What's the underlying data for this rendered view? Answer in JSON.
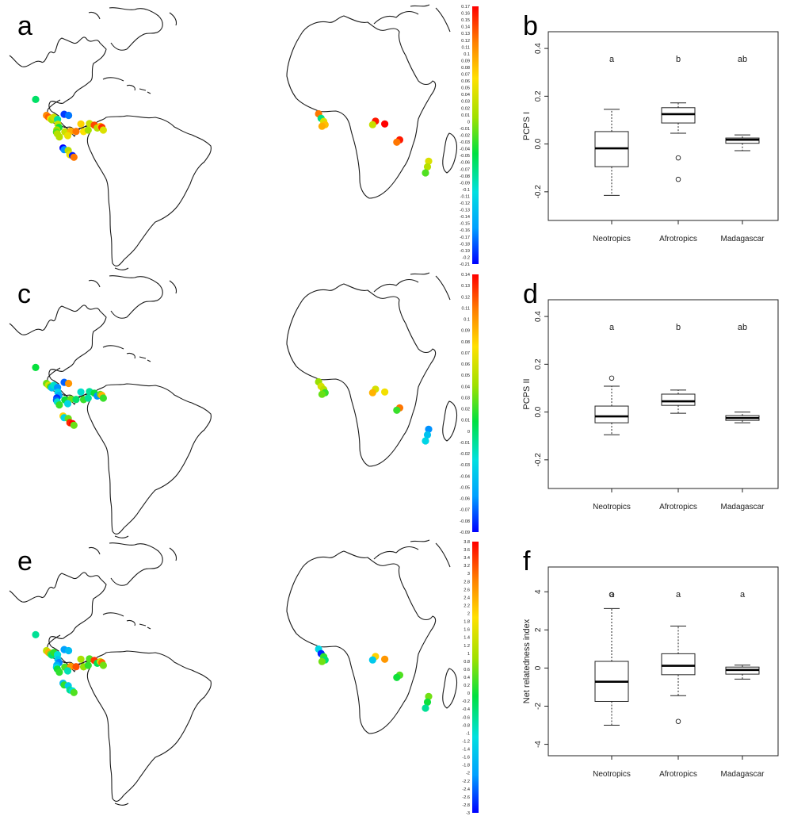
{
  "chart_data": [
    {
      "panel": "a",
      "type": "scatter",
      "colorbar": {
        "min": -0.21,
        "max": 0.17,
        "step": 0.01,
        "colors": [
          "#0000ff",
          "#00a0ff",
          "#00e0e0",
          "#00e040",
          "#a0e000",
          "#ffe000",
          "#ff8000",
          "#ff0000"
        ]
      },
      "sites": [
        {
          "lon": -89.8,
          "lat": 18.6,
          "value": -0.06
        },
        {
          "lon": -83.7,
          "lat": 10.2,
          "value": 0.11
        },
        {
          "lon": -82.6,
          "lat": 9.3,
          "value": 0.13
        },
        {
          "lon": -81.4,
          "lat": 8.4,
          "value": 0.06
        },
        {
          "lon": -80.7,
          "lat": 7.9,
          "value": 0.01
        },
        {
          "lon": -79.6,
          "lat": 9.2,
          "value": 0.03
        },
        {
          "lon": -77.5,
          "lat": 8.1,
          "value": -0.08
        },
        {
          "lon": -73.8,
          "lat": 10.8,
          "value": -0.19
        },
        {
          "lon": -71.3,
          "lat": 10.2,
          "value": -0.17
        },
        {
          "lon": -77.3,
          "lat": 5.6,
          "value": 0.03
        },
        {
          "lon": -76.7,
          "lat": 3.9,
          "value": -0.04
        },
        {
          "lon": -77.9,
          "lat": 2.6,
          "value": 0.01
        },
        {
          "lon": -78.1,
          "lat": 1.4,
          "value": -0.02
        },
        {
          "lon": -77.6,
          "lat": 0.5,
          "value": 0.02
        },
        {
          "lon": -73.4,
          "lat": 1.6,
          "value": 0.03
        },
        {
          "lon": -70.1,
          "lat": 1.9,
          "value": 0.09
        },
        {
          "lon": -67.1,
          "lat": 1.8,
          "value": 0.12
        },
        {
          "lon": -62.9,
          "lat": 1.7,
          "value": 0.06
        },
        {
          "lon": -60.3,
          "lat": 2.5,
          "value": 0.01
        },
        {
          "lon": -76.5,
          "lat": -1.1,
          "value": 0.02
        },
        {
          "lon": -71.8,
          "lat": -0.4,
          "value": 0.05
        },
        {
          "lon": -64.4,
          "lat": 5.7,
          "value": 0.07
        },
        {
          "lon": -59.6,
          "lat": 5.9,
          "value": 0.03
        },
        {
          "lon": -56.9,
          "lat": 5.1,
          "value": 0.14
        },
        {
          "lon": -55.2,
          "lat": 3.6,
          "value": 0.02
        },
        {
          "lon": -53.5,
          "lat": 4.4,
          "value": 0.08
        },
        {
          "lon": -52.6,
          "lat": 3.9,
          "value": 0.15
        },
        {
          "lon": -51.8,
          "lat": 2.5,
          "value": 0.04
        },
        {
          "lon": -74.4,
          "lat": -6.9,
          "value": -0.21
        },
        {
          "lon": -73.8,
          "lat": -7.8,
          "value": -0.16
        },
        {
          "lon": -71.5,
          "lat": -8.2,
          "value": 0.02
        },
        {
          "lon": -70.6,
          "lat": -10.4,
          "value": 0.05
        },
        {
          "lon": -69.1,
          "lat": -10.9,
          "value": -0.2
        },
        {
          "lon": -68.3,
          "lat": -11.8,
          "value": 0.12
        },
        {
          "lon": 9.9,
          "lat": 3.6,
          "value": 0.12
        },
        {
          "lon": 10.8,
          "lat": 1.8,
          "value": -0.07
        },
        {
          "lon": 11.7,
          "lat": 0.6,
          "value": 0.04
        },
        {
          "lon": 12.2,
          "lat": -0.7,
          "value": 0.08
        },
        {
          "lon": 11.1,
          "lat": -1.3,
          "value": 0.09
        },
        {
          "lon": 30.1,
          "lat": 0.7,
          "value": 0.16
        },
        {
          "lon": 29.1,
          "lat": -0.7,
          "value": 0.03
        },
        {
          "lon": 33.4,
          "lat": -0.4,
          "value": 0.17
        },
        {
          "lon": 38.7,
          "lat": -6.7,
          "value": 0.16
        },
        {
          "lon": 37.7,
          "lat": -7.6,
          "value": 0.12
        },
        {
          "lon": 49.0,
          "lat": -15.1,
          "value": 0.04
        },
        {
          "lon": 48.6,
          "lat": -17.3,
          "value": 0.02
        },
        {
          "lon": 47.9,
          "lat": -19.7,
          "value": -0.02
        }
      ]
    },
    {
      "panel": "b",
      "type": "boxplot",
      "ylabel": "PCPS I",
      "ylim": [
        -0.32,
        0.47
      ],
      "yticks": [
        -0.2,
        0.0,
        0.2,
        0.4
      ],
      "ytick_labels": [
        "-0.2",
        "0.0",
        "0.2",
        "0.4"
      ],
      "categories": [
        "Neotropics",
        "Afrotropics",
        "Madagascar"
      ],
      "group_letters": [
        "a",
        "b",
        "ab"
      ],
      "boxes": [
        {
          "whisker_low": -0.215,
          "q1": -0.095,
          "median": -0.018,
          "q3": 0.052,
          "whisker_high": 0.145,
          "outliers": []
        },
        {
          "whisker_low": 0.045,
          "q1": 0.088,
          "median": 0.125,
          "q3": 0.152,
          "whisker_high": 0.172,
          "outliers": [
            -0.058,
            -0.148
          ]
        },
        {
          "whisker_low": -0.028,
          "q1": 0.003,
          "median": 0.018,
          "q3": 0.025,
          "whisker_high": 0.038,
          "outliers": []
        }
      ]
    },
    {
      "panel": "c",
      "type": "scatter",
      "colorbar": {
        "min": -0.09,
        "max": 0.14,
        "step": 0.01,
        "colors": [
          "#0000ff",
          "#00a0ff",
          "#00e0e0",
          "#00e040",
          "#a0e000",
          "#ffe000",
          "#ff8000",
          "#ff0000"
        ]
      },
      "sites": [
        {
          "lon": -89.8,
          "lat": 18.6,
          "value": 0.01
        },
        {
          "lon": -83.7,
          "lat": 10.2,
          "value": 0.03
        },
        {
          "lon": -82.6,
          "lat": 9.3,
          "value": 0.06
        },
        {
          "lon": -81.4,
          "lat": 8.4,
          "value": 0.02
        },
        {
          "lon": -80.7,
          "lat": 7.9,
          "value": -0.04
        },
        {
          "lon": -79.6,
          "lat": 9.2,
          "value": -0.02
        },
        {
          "lon": -77.5,
          "lat": 8.1,
          "value": -0.06
        },
        {
          "lon": -73.8,
          "lat": 10.8,
          "value": -0.07
        },
        {
          "lon": -71.3,
          "lat": 10.2,
          "value": 0.1
        },
        {
          "lon": -77.3,
          "lat": 5.6,
          "value": -0.03
        },
        {
          "lon": -76.7,
          "lat": 3.9,
          "value": -0.05
        },
        {
          "lon": -77.9,
          "lat": 2.6,
          "value": -0.08
        },
        {
          "lon": -78.1,
          "lat": 1.4,
          "value": -0.07
        },
        {
          "lon": -77.6,
          "lat": 0.5,
          "value": -0.02
        },
        {
          "lon": -73.4,
          "lat": 1.6,
          "value": 0.01
        },
        {
          "lon": -70.1,
          "lat": 1.9,
          "value": 0.03
        },
        {
          "lon": -67.1,
          "lat": 1.8,
          "value": 0.0
        },
        {
          "lon": -62.9,
          "lat": 1.7,
          "value": 0.02
        },
        {
          "lon": -60.3,
          "lat": 2.5,
          "value": -0.01
        },
        {
          "lon": -76.5,
          "lat": -1.1,
          "value": 0.02
        },
        {
          "lon": -71.8,
          "lat": -0.4,
          "value": -0.03
        },
        {
          "lon": -64.4,
          "lat": 5.7,
          "value": -0.02
        },
        {
          "lon": -59.6,
          "lat": 5.9,
          "value": -0.01
        },
        {
          "lon": -56.9,
          "lat": 5.1,
          "value": 0.01
        },
        {
          "lon": -55.2,
          "lat": 3.6,
          "value": -0.06
        },
        {
          "lon": -53.5,
          "lat": 4.4,
          "value": 0.03
        },
        {
          "lon": -52.6,
          "lat": 3.9,
          "value": 0.09
        },
        {
          "lon": -51.8,
          "lat": 2.5,
          "value": 0.02
        },
        {
          "lon": -74.4,
          "lat": -6.9,
          "value": 0.08
        },
        {
          "lon": -73.8,
          "lat": -7.8,
          "value": -0.03
        },
        {
          "lon": -71.5,
          "lat": -8.2,
          "value": 0.03
        },
        {
          "lon": -70.6,
          "lat": -10.4,
          "value": 0.13
        },
        {
          "lon": -69.1,
          "lat": -10.9,
          "value": 0.14
        },
        {
          "lon": -68.3,
          "lat": -11.8,
          "value": 0.03
        },
        {
          "lon": 9.9,
          "lat": 3.6,
          "value": 0.04
        },
        {
          "lon": 10.8,
          "lat": 1.8,
          "value": 0.06
        },
        {
          "lon": 11.7,
          "lat": 0.6,
          "value": 0.05
        },
        {
          "lon": 12.2,
          "lat": -0.7,
          "value": 0.02
        },
        {
          "lon": 11.1,
          "lat": -1.3,
          "value": 0.03
        },
        {
          "lon": 30.1,
          "lat": 0.7,
          "value": 0.06
        },
        {
          "lon": 29.1,
          "lat": -0.7,
          "value": 0.09
        },
        {
          "lon": 33.4,
          "lat": -0.4,
          "value": 0.07
        },
        {
          "lon": 38.7,
          "lat": -6.7,
          "value": 0.11
        },
        {
          "lon": 37.7,
          "lat": -7.6,
          "value": 0.02
        },
        {
          "lon": 49.0,
          "lat": -15.1,
          "value": -0.06
        },
        {
          "lon": 48.6,
          "lat": -17.3,
          "value": -0.04
        },
        {
          "lon": 47.9,
          "lat": -19.7,
          "value": -0.03
        }
      ]
    },
    {
      "panel": "d",
      "type": "boxplot",
      "ylabel": "PCPS II",
      "ylim": [
        -0.32,
        0.47
      ],
      "yticks": [
        -0.2,
        0.0,
        0.2,
        0.4
      ],
      "ytick_labels": [
        "-0.2",
        "0.0",
        "0.2",
        "0.4"
      ],
      "categories": [
        "Neotropics",
        "Afrotropics",
        "Madagascar"
      ],
      "group_letters": [
        "a",
        "b",
        "ab"
      ],
      "boxes": [
        {
          "whisker_low": -0.095,
          "q1": -0.045,
          "median": -0.018,
          "q3": 0.025,
          "whisker_high": 0.108,
          "outliers": [
            0.142
          ]
        },
        {
          "whisker_low": -0.005,
          "q1": 0.028,
          "median": 0.045,
          "q3": 0.075,
          "whisker_high": 0.092,
          "outliers": []
        },
        {
          "whisker_low": -0.045,
          "q1": -0.035,
          "median": -0.025,
          "q3": -0.015,
          "whisker_high": 0.0,
          "outliers": []
        }
      ]
    },
    {
      "panel": "e",
      "type": "scatter",
      "colorbar": {
        "min": -3.0,
        "max": 3.8,
        "step": 0.2,
        "colors": [
          "#0000ff",
          "#00a0ff",
          "#00e0e0",
          "#00e040",
          "#a0e000",
          "#ffe000",
          "#ff8000",
          "#ff0000"
        ]
      },
      "sites": [
        {
          "lon": -89.8,
          "lat": 18.6,
          "value": -0.6
        },
        {
          "lon": -83.7,
          "lat": 10.2,
          "value": 1.2
        },
        {
          "lon": -82.6,
          "lat": 9.3,
          "value": 2.4
        },
        {
          "lon": -81.4,
          "lat": 8.4,
          "value": 0.6
        },
        {
          "lon": -80.7,
          "lat": 7.9,
          "value": -0.4
        },
        {
          "lon": -79.6,
          "lat": 9.2,
          "value": 0.2
        },
        {
          "lon": -77.5,
          "lat": 8.1,
          "value": -1.0
        },
        {
          "lon": -73.8,
          "lat": 10.8,
          "value": -2.0
        },
        {
          "lon": -71.3,
          "lat": 10.2,
          "value": -1.6
        },
        {
          "lon": -77.3,
          "lat": 5.6,
          "value": -1.4
        },
        {
          "lon": -76.7,
          "lat": 3.9,
          "value": -2.2
        },
        {
          "lon": -77.9,
          "lat": 2.6,
          "value": -1.8
        },
        {
          "lon": -78.1,
          "lat": 1.4,
          "value": -1.2
        },
        {
          "lon": -77.6,
          "lat": 0.5,
          "value": 0.0
        },
        {
          "lon": -73.4,
          "lat": 1.6,
          "value": 0.4
        },
        {
          "lon": -70.1,
          "lat": 1.9,
          "value": 2.6
        },
        {
          "lon": -67.1,
          "lat": 1.8,
          "value": 3.2
        },
        {
          "lon": -62.9,
          "lat": 1.7,
          "value": 0.8
        },
        {
          "lon": -60.3,
          "lat": 2.5,
          "value": 0.2
        },
        {
          "lon": -76.5,
          "lat": -1.1,
          "value": 0.2
        },
        {
          "lon": -71.8,
          "lat": -0.4,
          "value": -0.8
        },
        {
          "lon": -64.4,
          "lat": 5.7,
          "value": 1.0
        },
        {
          "lon": -59.6,
          "lat": 5.9,
          "value": 0.4
        },
        {
          "lon": -56.9,
          "lat": 5.1,
          "value": 3.4
        },
        {
          "lon": -55.2,
          "lat": 3.6,
          "value": -0.2
        },
        {
          "lon": -53.5,
          "lat": 4.4,
          "value": 1.4
        },
        {
          "lon": -52.6,
          "lat": 3.9,
          "value": 3.0
        },
        {
          "lon": -51.8,
          "lat": 2.5,
          "value": 0.6
        },
        {
          "lon": -74.4,
          "lat": -6.9,
          "value": -1.6
        },
        {
          "lon": -73.8,
          "lat": -7.8,
          "value": 0.2
        },
        {
          "lon": -71.5,
          "lat": -8.2,
          "value": -1.4
        },
        {
          "lon": -70.6,
          "lat": -10.4,
          "value": -0.6
        },
        {
          "lon": -69.1,
          "lat": -10.9,
          "value": -1.0
        },
        {
          "lon": -68.3,
          "lat": -11.8,
          "value": 0.4
        },
        {
          "lon": 9.9,
          "lat": 3.6,
          "value": -1.2
        },
        {
          "lon": 10.8,
          "lat": 1.8,
          "value": -2.8
        },
        {
          "lon": 11.7,
          "lat": 0.6,
          "value": 0.2
        },
        {
          "lon": 12.2,
          "lat": -0.7,
          "value": -0.4
        },
        {
          "lon": 11.1,
          "lat": -1.3,
          "value": 0.6
        },
        {
          "lon": 30.1,
          "lat": 0.7,
          "value": 2.0
        },
        {
          "lon": 29.1,
          "lat": -0.7,
          "value": -1.4
        },
        {
          "lon": 33.4,
          "lat": -0.4,
          "value": 2.6
        },
        {
          "lon": 38.7,
          "lat": -6.7,
          "value": 0.4
        },
        {
          "lon": 37.7,
          "lat": -7.6,
          "value": 0.0
        },
        {
          "lon": 49.0,
          "lat": -15.1,
          "value": 0.6
        },
        {
          "lon": 48.6,
          "lat": -17.3,
          "value": 0.0
        },
        {
          "lon": 47.9,
          "lat": -19.7,
          "value": -0.6
        }
      ]
    },
    {
      "panel": "f",
      "type": "boxplot",
      "ylabel": "Net relatedness index",
      "ylim": [
        -4.6,
        5.3
      ],
      "yticks": [
        -4,
        -2,
        0,
        2,
        4
      ],
      "ytick_labels": [
        "-4",
        "-2",
        "0",
        "2",
        "4"
      ],
      "categories": [
        "Neotropics",
        "Afrotropics",
        "Madagascar"
      ],
      "group_letters": [
        "a",
        "a",
        "a"
      ],
      "boxes": [
        {
          "whisker_low": -3.0,
          "q1": -1.75,
          "median": -0.72,
          "q3": 0.35,
          "whisker_high": 3.12,
          "outliers": [
            3.85
          ]
        },
        {
          "whisker_low": -1.45,
          "q1": -0.35,
          "median": 0.12,
          "q3": 0.75,
          "whisker_high": 2.2,
          "outliers": [
            -2.8
          ]
        },
        {
          "whisker_low": -0.58,
          "q1": -0.32,
          "median": -0.1,
          "q3": 0.05,
          "whisker_high": 0.15,
          "outliers": []
        }
      ]
    }
  ]
}
